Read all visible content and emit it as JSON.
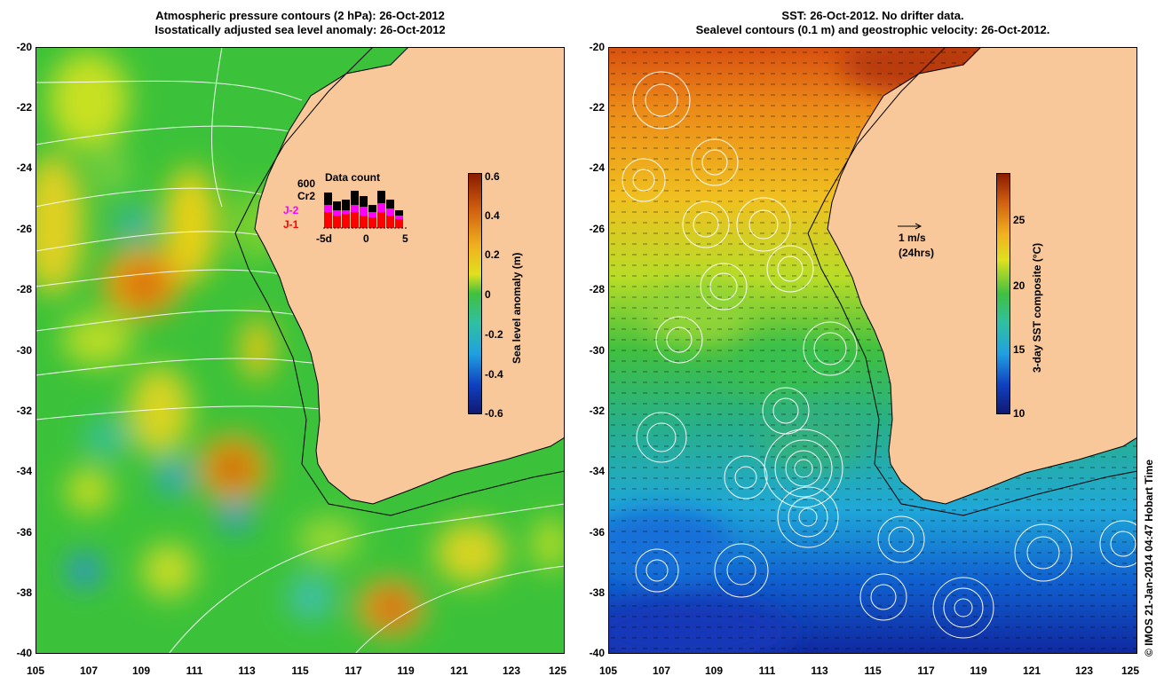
{
  "left_panel": {
    "title_line1": "Atmospheric pressure contours (2 hPa): 26-Oct-2012",
    "title_line2": "Isostatically adjusted sea level anomaly: 26-Oct-2012",
    "colorbar": {
      "label": "Sea level anomaly (m)",
      "ticks": [
        "0.6",
        "0.4",
        "0.2",
        "0",
        "-0.2",
        "-0.4",
        "-0.6"
      ]
    },
    "inset": {
      "title": "Data count",
      "scale_value": "600",
      "series": [
        "Cr2",
        "J-2",
        "J-1"
      ],
      "series_colors": [
        "#000000",
        "#ff00ff",
        "#ff0000"
      ],
      "x_ticks": [
        "-5d",
        "0",
        "5"
      ]
    }
  },
  "right_panel": {
    "title_line1": "SST: 26-Oct-2012. No drifter data.",
    "title_line2": "Sealevel contours (0.1 m) and geostrophic velocity: 26-Oct-2012.",
    "colorbar": {
      "label": "3-day SST composite (°C)",
      "ticks": [
        "25",
        "20",
        "15",
        "10"
      ]
    },
    "velocity_scale_label": "1 m/s",
    "velocity_scale_sub": "(24hrs)"
  },
  "axes": {
    "y_ticks": [
      "-20",
      "-22",
      "-24",
      "-26",
      "-28",
      "-30",
      "-32",
      "-34",
      "-36",
      "-38",
      "-40"
    ],
    "x_ticks": [
      "105",
      "107",
      "109",
      "111",
      "113",
      "115",
      "117",
      "119",
      "121",
      "123",
      "125"
    ]
  },
  "credit": "© IMOS 21-Jan-2014 04:47 Hobart Time",
  "colors": {
    "land": "#f9c89a",
    "ocean_mid": "#3ec83a",
    "sla_high": "#c03000",
    "sla_low": "#1a4cd0",
    "sst_warm": "#d04010",
    "sst_cold": "#1020a0"
  }
}
